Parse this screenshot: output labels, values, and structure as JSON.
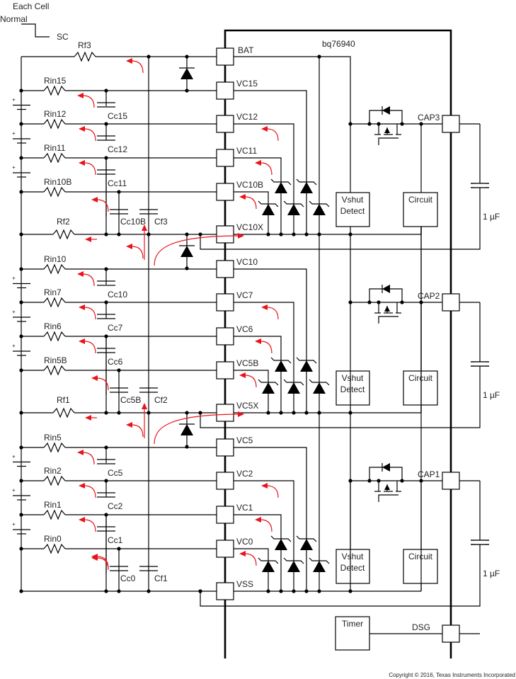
{
  "legend": {
    "title": "Each Cell",
    "normal": "Normal",
    "sc": "SC"
  },
  "ic": {
    "name": "bq76940"
  },
  "top": {
    "pin": "BAT",
    "rf": "Rf3"
  },
  "sections": [
    {
      "pins": [
        "VC15",
        "VC12",
        "VC11",
        "VC10B",
        "VC10X"
      ],
      "rin": [
        "Rin15",
        "Rin12",
        "Rin11",
        "Rin10B"
      ],
      "cc": [
        "Cc15",
        "Cc12",
        "Cc11",
        "Cc10B"
      ],
      "rf": "Rf2",
      "cf": "Cf3",
      "cap": "CAP3"
    },
    {
      "pins": [
        "VC10",
        "VC7",
        "VC6",
        "VC5B",
        "VC5X"
      ],
      "rin": [
        "Rin10",
        "Rin7",
        "Rin6",
        "Rin5B"
      ],
      "cc": [
        "Cc10",
        "Cc7",
        "Cc6",
        "Cc5B"
      ],
      "rf": "Rf1",
      "cf": "Cf2",
      "cap": "CAP2"
    },
    {
      "pins": [
        "VC5",
        "VC2",
        "VC1",
        "VC0",
        "VSS"
      ],
      "rin": [
        "Rin5",
        "Rin2",
        "Rin1",
        "Rin0"
      ],
      "cc": [
        "Cc5",
        "Cc2",
        "Cc1",
        "Cc0"
      ],
      "rf": "",
      "cf": "Cf1",
      "cap": "CAP1"
    }
  ],
  "blocks": {
    "vshut": [
      "Vshut",
      "Detect"
    ],
    "circuit": "Circuit",
    "timer": "Timer"
  },
  "cap_value": "1 µF",
  "cell_plus": "+",
  "dsg": "DSG",
  "copyright": "Copyright © 2016, Texas Instruments Incorporated",
  "colors": {
    "wire": "#000000",
    "current_arrow": "#e8141b"
  }
}
